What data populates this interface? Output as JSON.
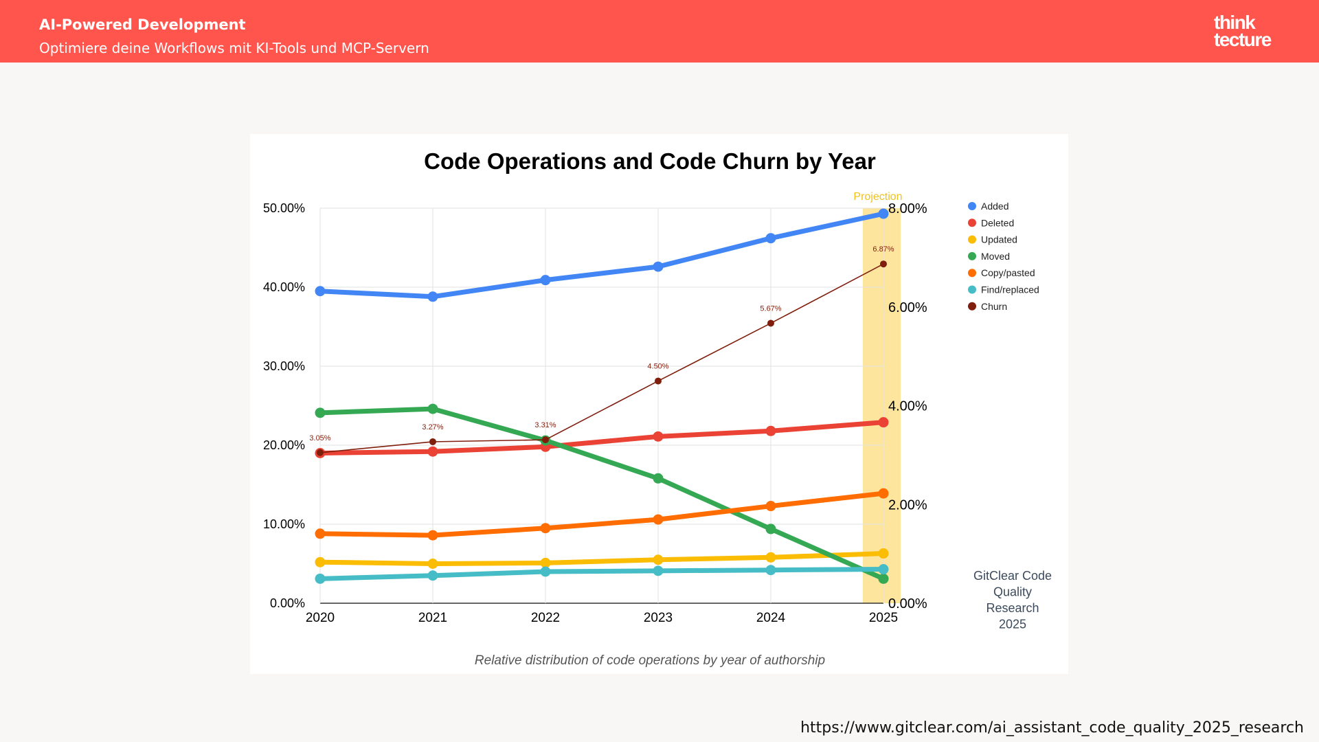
{
  "header": {
    "title": "AI-Powered Development",
    "subtitle": "Optimiere deine Workflows mit KI-Tools und MCP-Servern"
  },
  "logo": {
    "line1": "think",
    "line2": "tecture",
    "color": "#ffffff"
  },
  "source_url": "https://www.gitclear.com/ai_assistant_code_quality_2025_research",
  "chart_data": {
    "type": "line",
    "title": "Code Operations and Code Churn by Year",
    "subtitle": "Relative distribution of code operations by year of authorship",
    "x": [
      "2020",
      "2021",
      "2022",
      "2023",
      "2024",
      "2025"
    ],
    "projection_label": "Projection",
    "projection_index": 5,
    "y_left": {
      "min": 0,
      "max": 50,
      "ticks": [
        "0.00%",
        "10.00%",
        "20.00%",
        "30.00%",
        "40.00%",
        "50.00%"
      ]
    },
    "y_right": {
      "min": 0,
      "max": 8,
      "ticks": [
        "0.00%",
        "2.00%",
        "4.00%",
        "6.00%",
        "8.00%"
      ]
    },
    "grid": true,
    "legend_position": "right",
    "series": [
      {
        "name": "Added",
        "axis": "left",
        "color": "#4285f4",
        "values": [
          39.5,
          38.8,
          40.9,
          42.6,
          46.2,
          49.3
        ]
      },
      {
        "name": "Deleted",
        "axis": "left",
        "color": "#ea4335",
        "values": [
          19.0,
          19.2,
          19.8,
          21.1,
          21.8,
          22.9
        ]
      },
      {
        "name": "Updated",
        "axis": "left",
        "color": "#fbbc04",
        "values": [
          5.2,
          5.0,
          5.1,
          5.5,
          5.8,
          6.3
        ]
      },
      {
        "name": "Moved",
        "axis": "left",
        "color": "#34a853",
        "values": [
          24.1,
          24.6,
          20.6,
          15.8,
          9.4,
          3.1
        ]
      },
      {
        "name": "Copy/pasted",
        "axis": "left",
        "color": "#ff6d01",
        "values": [
          8.8,
          8.6,
          9.5,
          10.6,
          12.3,
          13.9
        ]
      },
      {
        "name": "Find/replaced",
        "axis": "left",
        "color": "#46bdc6",
        "values": [
          3.1,
          3.5,
          4.0,
          4.1,
          4.2,
          4.3
        ]
      },
      {
        "name": "Churn",
        "axis": "right",
        "color": "#7f1e0c",
        "values": [
          3.05,
          3.27,
          3.31,
          4.5,
          5.67,
          6.87
        ],
        "labels": [
          "3.05%",
          "3.27%",
          "3.31%",
          "4.50%",
          "5.67%",
          "6.87%"
        ]
      }
    ],
    "annotation": [
      "GitClear Code",
      "Quality",
      "Research",
      "2025"
    ]
  }
}
